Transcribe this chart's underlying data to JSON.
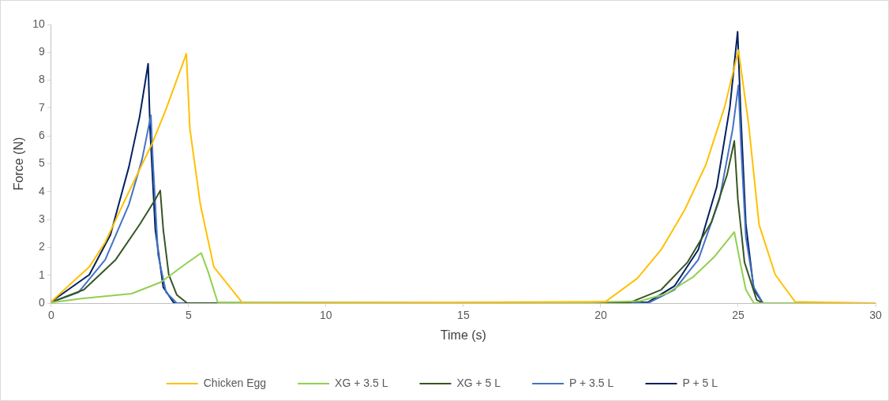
{
  "chart_data": {
    "type": "line",
    "xlabel": "Time (s)",
    "ylabel": "Force (N)",
    "xlim": [
      0,
      30
    ],
    "xticks": [
      0,
      5,
      10,
      15,
      20,
      25,
      30
    ],
    "ylim": [
      0,
      10
    ],
    "yticks": [
      0,
      1,
      2,
      3,
      4,
      5,
      6,
      7,
      8,
      9,
      10
    ],
    "grid": false,
    "legend": "bottom",
    "marker": "none",
    "line_style": "solid",
    "series": [
      {
        "name": "Chicken Egg",
        "color": "#ffc000",
        "x": [
          0,
          1.39,
          1.97,
          2.83,
          3.7,
          4.18,
          4.92,
          5.05,
          5.43,
          5.92,
          6.97,
          20.17,
          21.33,
          22.2,
          23.06,
          23.83,
          24.51,
          25.01,
          25.38,
          25.76,
          26.35,
          27.07,
          30
        ],
        "values": [
          0.05,
          1.3,
          2.19,
          4.0,
          5.78,
          6.96,
          8.95,
          6.24,
          3.54,
          1.3,
          0,
          0.05,
          0.89,
          1.92,
          3.36,
          4.98,
          7.05,
          9.08,
          6.42,
          2.82,
          1.02,
          0.05,
          0
        ]
      },
      {
        "name": "XG + 3.5 L",
        "color": "#92d050",
        "x": [
          0,
          1.1,
          2.93,
          3.99,
          4.86,
          5.46,
          5.72,
          6.06,
          19.6,
          21.43,
          22.39,
          23.35,
          24.12,
          24.86,
          25.09,
          25.28,
          25.57,
          30
        ],
        "values": [
          0.02,
          0.16,
          0.34,
          0.75,
          1.38,
          1.8,
          1.1,
          0.03,
          0.03,
          0.07,
          0.34,
          0.93,
          1.65,
          2.55,
          1.38,
          0.48,
          0,
          0
        ]
      },
      {
        "name": "XG + 5 L",
        "color": "#375623",
        "x": [
          0,
          1.19,
          2.35,
          3.22,
          3.79,
          3.97,
          4.08,
          4.28,
          4.57,
          4.95,
          21.09,
          22.2,
          23.16,
          24.03,
          24.6,
          24.86,
          24.99,
          25.23,
          25.67,
          25.9,
          30
        ],
        "values": [
          0.03,
          0.48,
          1.56,
          2.82,
          3.72,
          4.04,
          2.64,
          1.02,
          0.3,
          0,
          0.03,
          0.48,
          1.47,
          2.91,
          4.62,
          5.82,
          3.72,
          1.47,
          0.12,
          0,
          0
        ]
      },
      {
        "name": "P + 3.5 L",
        "color": "#4472c4",
        "x": [
          0,
          1.0,
          1.97,
          2.83,
          3.31,
          3.63,
          3.7,
          3.89,
          4.18,
          4.57,
          21.72,
          22.68,
          23.55,
          24.32,
          24.8,
          25.01,
          25.11,
          25.28,
          25.57,
          25.9,
          30
        ],
        "values": [
          0.03,
          0.39,
          1.56,
          3.54,
          5.16,
          6.74,
          5.16,
          1.74,
          0.39,
          0,
          0,
          0.48,
          1.56,
          3.72,
          6.24,
          7.82,
          5.52,
          2.37,
          0.57,
          0,
          0
        ]
      },
      {
        "name": "P + 5 L",
        "color": "#002060",
        "x": [
          0,
          1.39,
          2.16,
          2.83,
          3.22,
          3.53,
          3.6,
          3.79,
          4.08,
          4.47,
          21.72,
          22.68,
          23.55,
          24.22,
          24.7,
          24.98,
          25.09,
          25.28,
          25.57,
          25.9,
          30
        ],
        "values": [
          0.05,
          1.02,
          2.46,
          4.89,
          6.69,
          8.59,
          6.24,
          2.64,
          0.57,
          0,
          0.03,
          0.61,
          1.92,
          4.17,
          7.05,
          9.74,
          6.87,
          2.82,
          0.48,
          0,
          0
        ]
      }
    ]
  }
}
